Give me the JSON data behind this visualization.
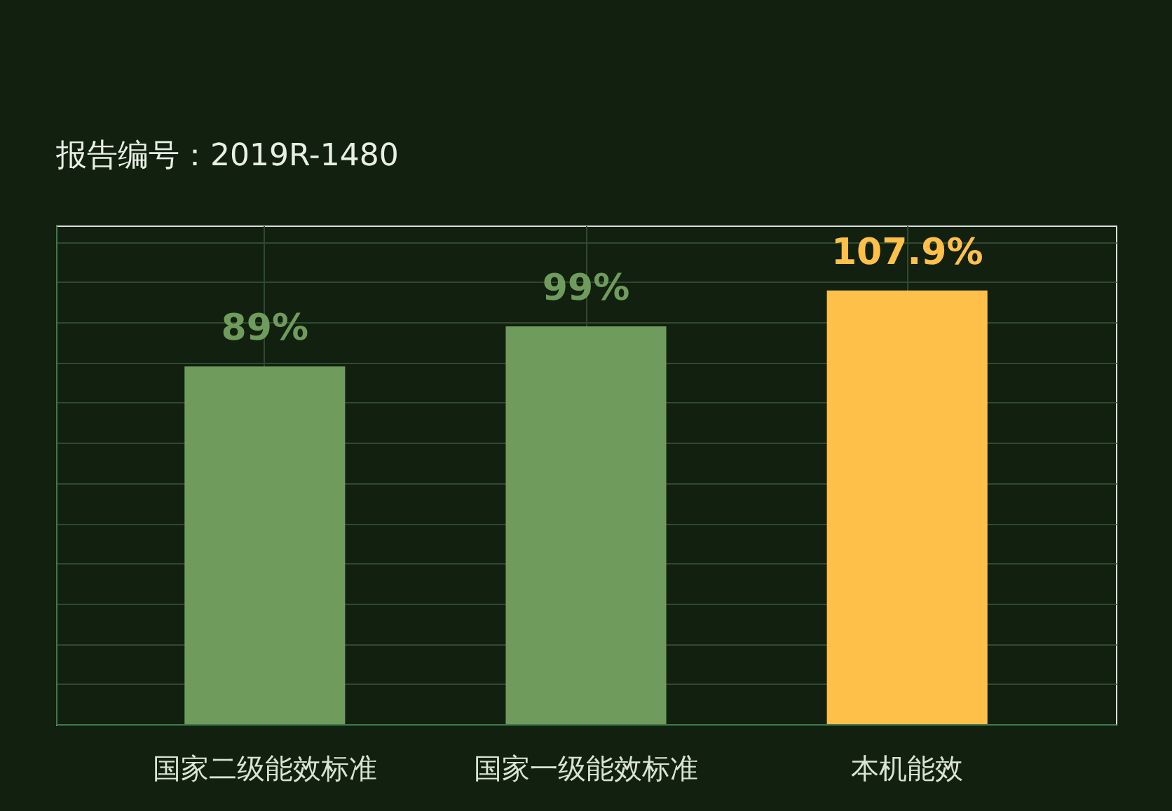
{
  "chart_data": {
    "type": "bar",
    "categories": [
      "国家二级能效标准",
      "国家一级能效标准",
      "本机能效"
    ],
    "values": [
      89,
      99,
      107.9
    ],
    "value_labels": [
      "89%",
      "99%",
      "107.9%"
    ],
    "colors": [
      "#6f9c5c",
      "#6f9c5c",
      "#ffc04a"
    ],
    "grid": true,
    "tick_labels": "x",
    "annotations": [
      "报告编号：2019R-1480"
    ]
  }
}
